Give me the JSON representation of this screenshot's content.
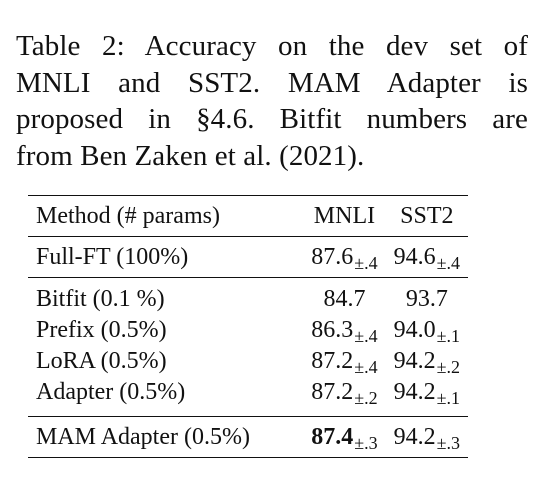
{
  "caption": {
    "line1": "Table 2:  Accuracy on the dev set of",
    "line2": "MNLI and SST2.  MAM Adapter is",
    "line3": "proposed in §4.6.  Bitfit numbers are",
    "line4": "from Ben Zaken et al. (2021)."
  },
  "table": {
    "headers": {
      "method": "Method (# params)",
      "mnli": "MNLI",
      "sst2": "SST2"
    },
    "rows": [
      {
        "method": "Full-FT (100%)",
        "mnli": "87.6",
        "mnli_pm": "±.4",
        "sst2": "94.6",
        "sst2_pm": "±.4"
      },
      {
        "method": "Bitfit (0.1 %)",
        "mnli": "84.7",
        "mnli_pm": "",
        "sst2": "93.7",
        "sst2_pm": ""
      },
      {
        "method": "Prefix (0.5%)",
        "mnli": "86.3",
        "mnli_pm": "±.4",
        "sst2": "94.0",
        "sst2_pm": "±.1"
      },
      {
        "method": "LoRA (0.5%)",
        "mnli": "87.2",
        "mnli_pm": "±.4",
        "sst2": "94.2",
        "sst2_pm": "±.2"
      },
      {
        "method": "Adapter (0.5%)",
        "mnli": "87.2",
        "mnli_pm": "±.2",
        "sst2": "94.2",
        "sst2_pm": "±.1"
      },
      {
        "method": "MAM Adapter (0.5%)",
        "mnli": "87.4",
        "mnli_pm": "±.3",
        "sst2": "94.2",
        "sst2_pm": "±.3"
      }
    ]
  }
}
